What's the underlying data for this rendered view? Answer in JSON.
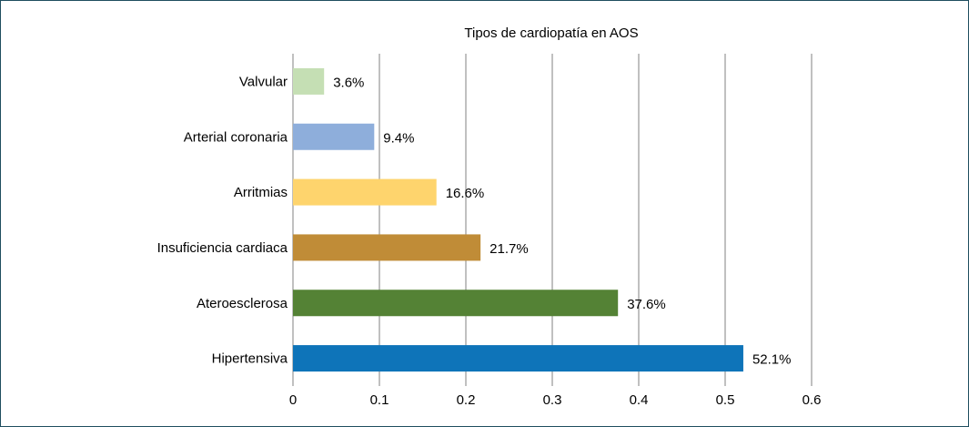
{
  "chart_data": {
    "type": "bar",
    "orientation": "horizontal",
    "title": "Tipos de cardiopatía en AOS",
    "xlabel": "",
    "ylabel": "",
    "categories": [
      "Valvular",
      "Arterial coronaria",
      "Arritmias",
      "Insuficiencia cardiaca",
      "Ateroesclerosa",
      "Hipertensiva"
    ],
    "values": [
      0.036,
      0.094,
      0.166,
      0.217,
      0.376,
      0.521
    ],
    "data_labels": [
      "3.6%",
      "9.4%",
      "16.6%",
      "21.7%",
      "37.6%",
      "52.1%"
    ],
    "colors": [
      "#c5dfb4",
      "#8eaedb",
      "#fed46d",
      "#c08c37",
      "#548235",
      "#0e74b9"
    ],
    "xlim": [
      0,
      0.6
    ],
    "xticks": [
      0,
      0.1,
      0.2,
      0.3,
      0.4,
      0.5,
      0.6
    ],
    "xtick_labels": [
      "0",
      "0.1",
      "0.2",
      "0.3",
      "0.4",
      "0.5",
      "0.6"
    ],
    "grid": "vertical",
    "legend": "none"
  },
  "style": {
    "border_color": "#1f4e5f",
    "grid_color": "#808080"
  }
}
